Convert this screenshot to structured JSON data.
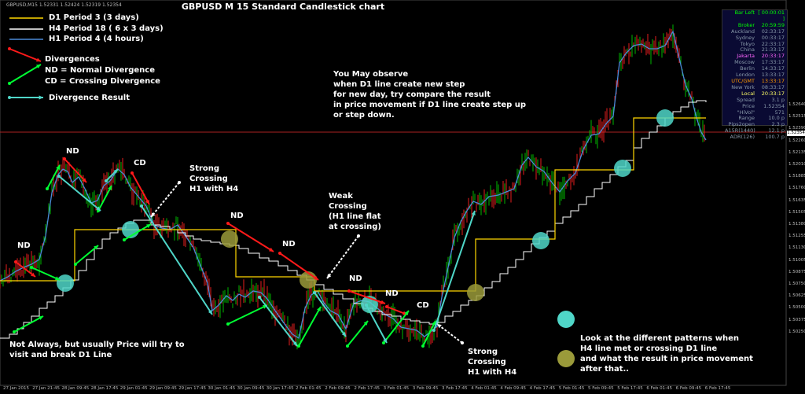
{
  "window": {
    "symbol_label": "GBPUSD,M15  1.52331 1.52424 1.52319 1.52354",
    "title": "GBPUSD M 15 Standard Candlestick chart",
    "current_price": "1.52354"
  },
  "legend": {
    "lines": [
      {
        "name": "D1 Period 3 (3 days)",
        "color": "#ffd700"
      },
      {
        "name": "H4 Period 18 ( 6 x 3 days)",
        "color": "#ffffff"
      },
      {
        "name": "H1 Period 4 (4 hours)",
        "color": "#4a8ad8"
      }
    ],
    "divergences": "Divergences",
    "nd_def": "ND = Normal Divergence",
    "cd_def": "CD = Crossing Divergence",
    "result": "Divergence Result"
  },
  "annotations": {
    "observe": "You May observe\nwhen D1 line create new step\nfor new day, try compare the result\nin price movement if D1 line create step up\nor step down.",
    "strong_top": "Strong\nCrossing\nH1 with H4",
    "weak": "Weak\nCrossing\n(H1 line flat\nat crossing)",
    "strong_bottom": "Strong\nCrossing\nH1 with H4",
    "not_always": "Not Always, but usually Price will try to\nvisit and break D1 Line",
    "patterns": "Look at the different patterns when\nH4 line met or crossing D1 line\nand what the result in price movement\nafter that..",
    "nd": "ND",
    "cd": "CD"
  },
  "info_panel": [
    {
      "k": "Bar Left",
      "v": "[ 00:00:01 ]",
      "color": "#00ff00"
    },
    {
      "k": "Broker",
      "v": "20:59:59",
      "color": "#00ff00"
    },
    {
      "k": "Auckland",
      "v": "02:33:17",
      "color": "#8899aa"
    },
    {
      "k": "Sydney",
      "v": "00:33:17",
      "color": "#8899aa"
    },
    {
      "k": "Tokyo",
      "v": "22:33:17",
      "color": "#8899aa"
    },
    {
      "k": "China",
      "v": "21:33:17",
      "color": "#8899aa"
    },
    {
      "k": "Jakarta",
      "v": "20:33:17",
      "color": "#ff66ff"
    },
    {
      "k": "Moscow",
      "v": "17:33:17",
      "color": "#8899aa"
    },
    {
      "k": "Berlin",
      "v": "14:33:17",
      "color": "#8899aa"
    },
    {
      "k": "London",
      "v": "13:33:17",
      "color": "#8899aa"
    },
    {
      "k": "UTC/GMT",
      "v": "13:33:17",
      "color": "#ff9900"
    },
    {
      "k": "New York",
      "v": "08:33:17",
      "color": "#8899aa"
    },
    {
      "k": "Local",
      "v": "20:33:17",
      "color": "#ffff66"
    },
    {
      "k": "Spread",
      "v": "3.1 p",
      "color": "#8899aa"
    },
    {
      "k": "Price",
      "v": "1.52354",
      "color": "#8899aa"
    },
    {
      "k": "\"HiVol\"",
      "v": "571",
      "color": "#8899aa"
    },
    {
      "k": "Range",
      "v": "10.0 p",
      "color": "#8899aa"
    },
    {
      "k": "Pips2open",
      "v": "2.3 p",
      "color": "#8899aa"
    },
    {
      "k": "A15R(1440)",
      "v": "12.1 p",
      "color": "#8899aa"
    },
    {
      "k": "ADR(126)",
      "v": "100.7 p",
      "color": "#8899aa"
    }
  ],
  "y_axis": [
    "1.52640",
    "1.52515",
    "1.52390",
    "1.52260",
    "1.52135",
    "1.52010",
    "1.51885",
    "1.51760",
    "1.51635",
    "1.51505",
    "1.51380",
    "1.51255",
    "1.51130",
    "1.51005",
    "1.50875",
    "1.50750",
    "1.50625",
    "1.50500",
    "1.50375",
    "1.50250"
  ],
  "x_axis": [
    "27 Jan 2015",
    "27 Jan 21:45",
    "28 Jan 09:45",
    "28 Jan 17:45",
    "29 Jan 01:45",
    "29 Jan 09:45",
    "29 Jan 17:45",
    "30 Jan 01:45",
    "30 Jan 09:45",
    "30 Jan 17:45",
    "2 Feb 01:45",
    "2 Feb 09:45",
    "2 Feb 17:45",
    "3 Feb 01:45",
    "3 Feb 09:45",
    "3 Feb 17:45",
    "4 Feb 01:45",
    "4 Feb 09:45",
    "4 Feb 17:45",
    "5 Feb 01:45",
    "5 Feb 09:45",
    "5 Feb 17:45",
    "6 Feb 01:45",
    "6 Feb 09:45",
    "6 Feb 17:45"
  ],
  "colors": {
    "bull": "#00cc00",
    "bear": "#ff2222",
    "h1": "#4a8ad8",
    "h4": "#ffffff",
    "d1": "#ffd700",
    "green": "#00ff33",
    "red": "#ff1a1a",
    "cyan": "#4fd6c8",
    "olive": "#9a9a3a"
  }
}
